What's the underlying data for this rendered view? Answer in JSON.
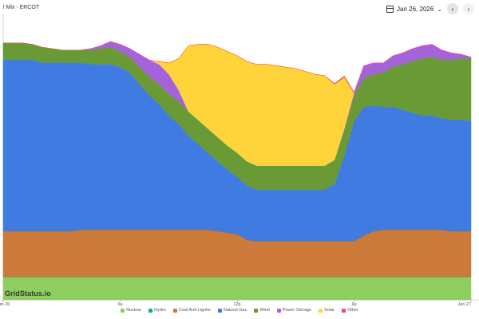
{
  "header": {
    "title": "l Mix - ERCOT",
    "date": "Jan 26, 2026",
    "prev_label": "‹",
    "next_label": "›"
  },
  "watermark": "GridStatus.io",
  "chart_data": {
    "type": "area",
    "stacked": true,
    "x": [
      0,
      1,
      1.5,
      2,
      2.5,
      3,
      3.5,
      4,
      4.5,
      5,
      5.5,
      6,
      6.5,
      7,
      7.5,
      8,
      8.5,
      9,
      9.5,
      10,
      10.5,
      11,
      11.5,
      12,
      12.5,
      13,
      13.5,
      14,
      14.5,
      15,
      15.5,
      16,
      16.5,
      17,
      17.5,
      18,
      18.5,
      19,
      19.5,
      20,
      20.5,
      21,
      21.5,
      22,
      22.5,
      23,
      23.5,
      24
    ],
    "x_ticks": [
      {
        "value": 0,
        "label": "Jan 26"
      },
      {
        "value": 6,
        "label": "6a"
      },
      {
        "value": 12,
        "label": "12p"
      },
      {
        "value": 18,
        "label": "6p"
      },
      {
        "value": 24,
        "label": "Jan 27"
      }
    ],
    "xlim": [
      0,
      24
    ],
    "ylim": [
      0,
      100
    ],
    "grid": false,
    "legend_position": "bottom",
    "series": [
      {
        "name": "Nuclear",
        "color": "#8dce5e",
        "values": [
          8,
          8,
          8,
          8,
          8,
          8,
          8,
          8,
          8,
          8,
          8,
          8,
          8,
          8,
          8,
          8,
          8,
          8,
          8,
          8,
          8,
          8,
          8,
          8,
          8,
          8,
          8,
          8,
          8,
          8,
          8,
          8,
          8,
          8,
          8,
          8,
          8,
          8,
          8,
          8,
          8,
          8,
          8,
          8,
          8,
          8,
          8,
          8
        ]
      },
      {
        "name": "Hydro",
        "color": "#1aa39b",
        "values": [
          0,
          0,
          0,
          0,
          0,
          0,
          0,
          0,
          0,
          0,
          0,
          0,
          0,
          0,
          0,
          0,
          0,
          0,
          0,
          0,
          0,
          0,
          0,
          0,
          0,
          0,
          0,
          0,
          0,
          0,
          0,
          0,
          0,
          0,
          0,
          0,
          0,
          0,
          0,
          0,
          0,
          0,
          0,
          0,
          0,
          0,
          0,
          0
        ]
      },
      {
        "name": "Coal And Lignite",
        "color": "#cc7a3a",
        "values": [
          16,
          16,
          16,
          16,
          16,
          16,
          16,
          16.5,
          16.5,
          16.5,
          16.5,
          16.5,
          16.5,
          16.5,
          16.5,
          16.5,
          16.5,
          16.5,
          16.5,
          16.5,
          16.5,
          16,
          15.5,
          15,
          13,
          12.5,
          12.5,
          12.5,
          12.5,
          12.5,
          12.5,
          12.5,
          12.5,
          12.5,
          12.5,
          12.5,
          14.5,
          16,
          16.5,
          16.5,
          16.5,
          16.5,
          16.5,
          16.5,
          16.5,
          16,
          16,
          16
        ]
      },
      {
        "name": "Natural Gas",
        "color": "#3f7be0",
        "values": [
          60,
          60,
          60,
          59,
          59,
          59,
          59,
          58.5,
          58,
          58,
          58,
          57,
          55,
          51,
          47,
          44,
          40,
          37,
          33,
          30,
          27,
          24.5,
          22,
          20,
          19,
          18,
          18,
          18,
          18,
          18,
          18,
          18,
          18,
          20,
          30,
          42,
          45,
          44,
          43,
          43,
          42,
          41,
          40,
          40,
          39,
          39,
          39,
          38.5
        ]
      },
      {
        "name": "Wind",
        "color": "#6a9a36",
        "values": [
          6,
          6,
          5.5,
          5.5,
          5,
          4.5,
          4.5,
          4.5,
          5,
          5.5,
          6,
          5.5,
          5.5,
          6,
          6.5,
          7,
          7.5,
          8,
          8.5,
          8.5,
          8.5,
          8.5,
          8.5,
          8.5,
          8.5,
          8.5,
          8.5,
          8.5,
          8.5,
          8.5,
          8.5,
          8.5,
          8.5,
          8.5,
          9,
          9,
          10,
          11,
          12,
          14,
          16,
          18,
          20,
          20.5,
          20.5,
          21,
          21.5,
          22
        ]
      },
      {
        "name": "Power Storage",
        "color": "#a463d9",
        "values": [
          0,
          0,
          0,
          0,
          0,
          0,
          0,
          0,
          0.5,
          1,
          2,
          2.5,
          3,
          4.5,
          6,
          7,
          7,
          4,
          0,
          0,
          0,
          0,
          0,
          0,
          0,
          0,
          0,
          0,
          0,
          0,
          0,
          0,
          0,
          0,
          0.5,
          1,
          4.5,
          4,
          3.5,
          4,
          4,
          4.5,
          4.5,
          4.5,
          3.5,
          2.5,
          1.5,
          0.5
        ]
      },
      {
        "name": "Solar",
        "color": "#ffd43b",
        "values": [
          0,
          0,
          0,
          0,
          0,
          0,
          0,
          0,
          0,
          0,
          0,
          0,
          0,
          0,
          0,
          1,
          4,
          11,
          23,
          26.5,
          29.5,
          31.5,
          33,
          34,
          35,
          35.5,
          35.5,
          35,
          34.5,
          34,
          33,
          32,
          31.5,
          26.5,
          18,
          0,
          0,
          0,
          0,
          0,
          0,
          0,
          0,
          0,
          0,
          0,
          0,
          0
        ]
      },
      {
        "name": "Other",
        "color": "#e04f7e",
        "values": [
          0,
          0,
          0,
          0,
          0,
          0,
          0,
          0,
          0,
          0,
          0,
          0,
          0,
          0,
          0,
          0,
          0,
          0,
          0,
          0,
          0,
          0,
          0,
          0,
          0,
          0,
          0,
          0,
          0,
          0,
          0,
          0,
          0,
          0.3,
          0.4,
          0.3,
          0,
          0,
          0,
          0,
          0,
          0,
          0,
          0,
          0,
          0,
          0,
          0
        ]
      }
    ]
  }
}
